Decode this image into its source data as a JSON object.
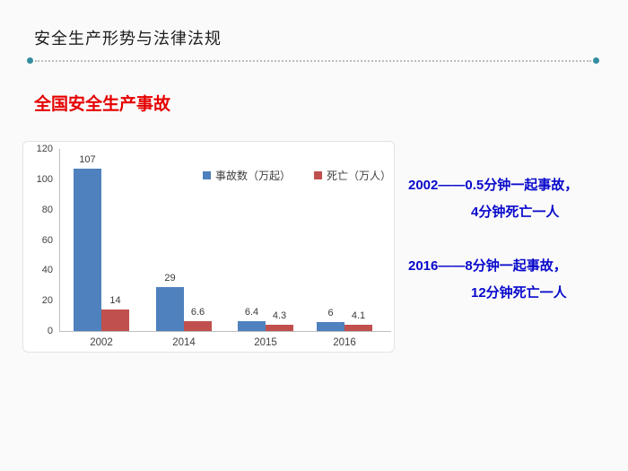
{
  "header": {
    "title": "安全生产形势与法律法规"
  },
  "divider": {
    "dot_color": "#338da0"
  },
  "section": {
    "title": "全国安全生产事故"
  },
  "chart_data": {
    "type": "bar",
    "title": "",
    "categories": [
      "2002",
      "2014",
      "2015",
      "2016"
    ],
    "series": [
      {
        "name": "事故数（万起）",
        "color": "#4e81bd",
        "values": [
          107,
          29,
          6.4,
          6
        ]
      },
      {
        "name": "死亡（万人）",
        "color": "#c0504d",
        "values": [
          14,
          6.6,
          4.3,
          4.1
        ]
      }
    ],
    "ylim": [
      0,
      120
    ],
    "yticks": [
      0,
      20,
      40,
      60,
      80,
      100,
      120
    ],
    "grid": false,
    "legend_position": "top-center",
    "data_labels": true,
    "xlabel": "",
    "ylabel": ""
  },
  "notes": {
    "color": "#0808cc",
    "blocks": [
      {
        "line1": "2002——0.5分钟一起事故，",
        "line2": "4分钟死亡一人"
      },
      {
        "line1": "2016——8分钟一起事故，",
        "line2": "12分钟死亡一人"
      }
    ]
  }
}
